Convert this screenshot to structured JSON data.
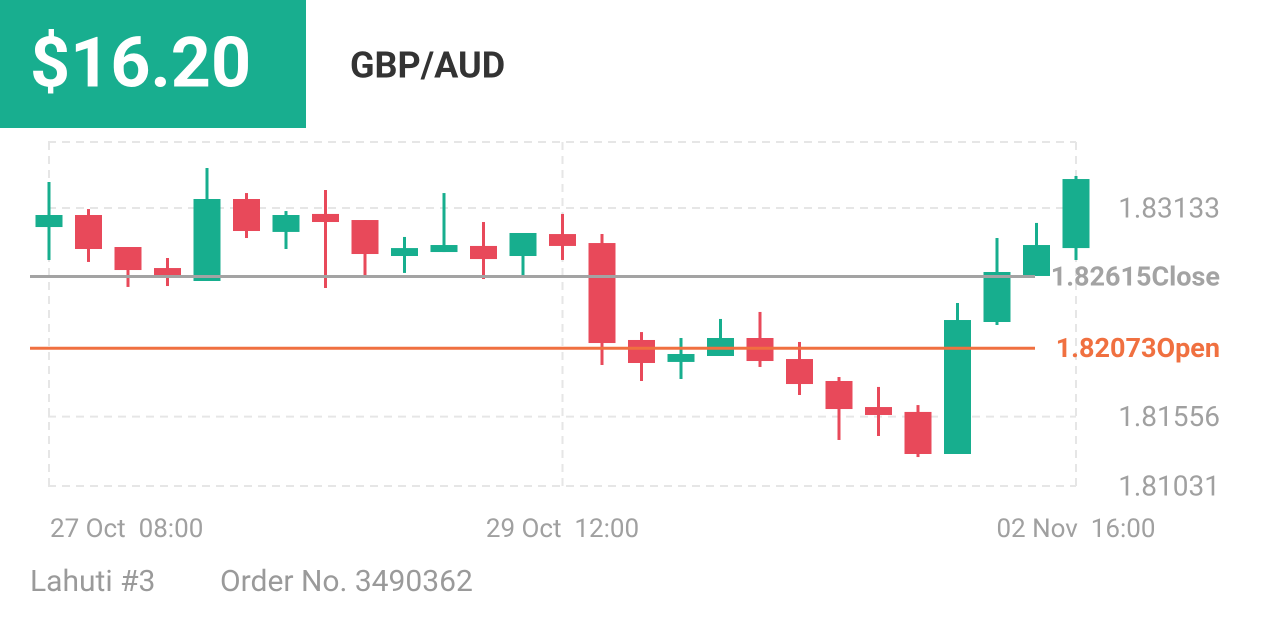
{
  "header": {
    "price": "$16.20",
    "pair": "GBP/AUD"
  },
  "chart_data": {
    "type": "candlestick",
    "categories": [
      "27 Oct  08:00",
      null,
      null,
      null,
      null,
      null,
      null,
      null,
      null,
      null,
      null,
      null,
      null,
      "29 Oct  12:00",
      null,
      null,
      null,
      null,
      null,
      null,
      null,
      null,
      null,
      null,
      null,
      null,
      "02 Nov  16:00"
    ],
    "open": [
      1.82989,
      1.8308,
      1.82838,
      1.82679,
      1.82581,
      1.83201,
      1.82952,
      1.83088,
      1.83042,
      1.8277,
      1.828,
      1.82846,
      1.8277,
      1.82936,
      1.82868,
      1.82135,
      1.81969,
      1.82014,
      1.8215,
      1.81991,
      1.81825,
      1.81628,
      1.81591,
      1.81273,
      1.82271,
      1.82619,
      1.8283
    ],
    "high": [
      1.8333,
      1.83125,
      1.82838,
      1.82755,
      1.83435,
      1.83246,
      1.8311,
      1.83269,
      1.83042,
      1.82914,
      1.83246,
      1.83027,
      1.82944,
      1.83088,
      1.82936,
      1.82195,
      1.8215,
      1.82294,
      1.82347,
      1.8212,
      1.81855,
      1.8178,
      1.81643,
      1.82415,
      1.82906,
      1.8302,
      1.83375
    ],
    "low": [
      1.8274,
      1.82725,
      1.82536,
      1.82543,
      1.82581,
      1.82906,
      1.82823,
      1.82528,
      1.82626,
      1.82642,
      1.828,
      1.82596,
      1.82626,
      1.8274,
      1.81946,
      1.81825,
      1.8184,
      1.82014,
      1.81931,
      1.81719,
      1.81379,
      1.81409,
      1.8125,
      1.81273,
      1.82248,
      1.82619,
      1.8274
    ],
    "close": [
      1.8308,
      1.82823,
      1.82664,
      1.82619,
      1.83201,
      1.82959,
      1.8308,
      1.83027,
      1.82785,
      1.8283,
      1.82853,
      1.82747,
      1.82944,
      1.82846,
      1.82112,
      1.81961,
      1.82029,
      1.8215,
      1.81976,
      1.81802,
      1.81613,
      1.81568,
      1.81273,
      1.82286,
      1.82649,
      1.82853,
      1.83352
    ],
    "up_color": "#17ae8e",
    "down_color": "#e8495a",
    "ylim": [
      1.81031,
      1.83632
    ],
    "yticks": [
      1.81031,
      1.81556,
      1.83133
    ],
    "grid": true,
    "lines": [
      {
        "value": 1.82615,
        "label": "Close",
        "color": "#a3a3a3"
      },
      {
        "value": 1.82073,
        "label": "Open",
        "color": "#f07040"
      }
    ]
  },
  "footer": {
    "account": "Lahuti #3",
    "order": "Order No. 3490362"
  }
}
